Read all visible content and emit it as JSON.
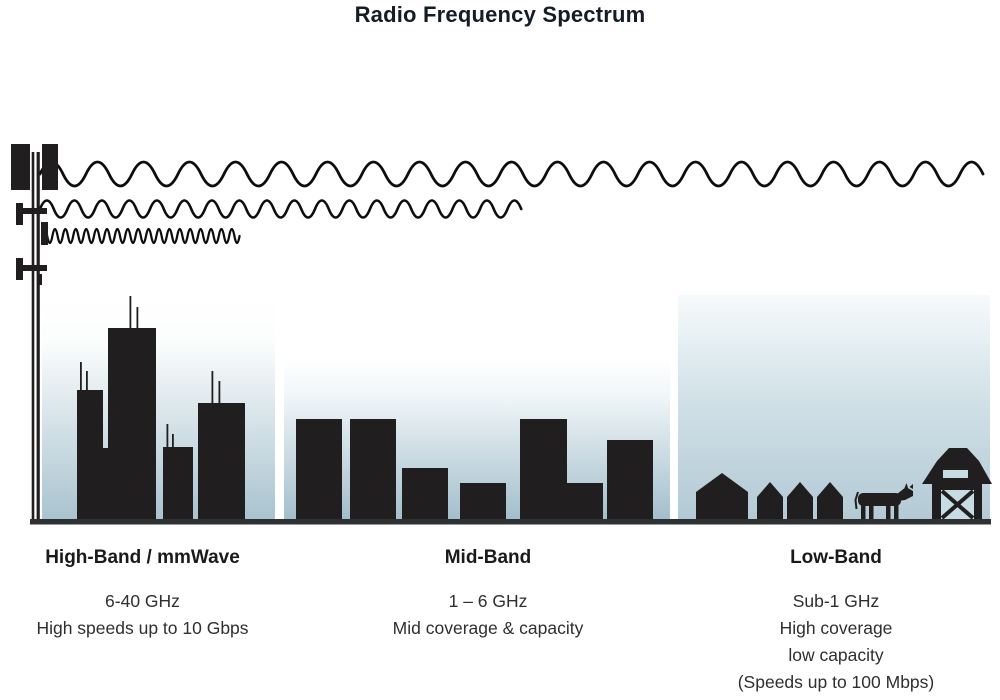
{
  "title": "Radio Frequency Spectrum",
  "bands": [
    {
      "name": "High-Band / mmWave",
      "lines": [
        "6-40 GHz",
        "High speeds up to 10 Gbps"
      ],
      "scene_icon": "city-skyscrapers-icon",
      "wave_icon": "short-wavelength-wave-icon",
      "wave_reach": "shortest"
    },
    {
      "name": "Mid-Band",
      "lines": [
        "1 – 6 GHz",
        "Mid coverage & capacity"
      ],
      "scene_icon": "mid-rise-buildings-icon",
      "wave_icon": "medium-wavelength-wave-icon",
      "wave_reach": "medium"
    },
    {
      "name": "Low-Band",
      "lines": [
        "Sub-1 GHz",
        "High coverage",
        "low capacity",
        "(Speeds up to 100 Mbps)"
      ],
      "scene_icon": "rural-houses-cow-barn-icon",
      "wave_icon": "long-wavelength-wave-icon",
      "wave_reach": "full-width"
    }
  ],
  "illustration": {
    "transmitter_icon": "cell-tower-icon",
    "ground_icon": "ground-line"
  },
  "colors": {
    "silhouette": "#211e1f",
    "wave_color": "#0d0d0d",
    "title_color": "#141c26",
    "heading_color": "#1a1a1a",
    "body_text_color": "#2f2f2f",
    "ground_color": "#2e3133",
    "sky_gradient_top": "#ffffff",
    "sky_gradient_bottom": "#a9c3cf",
    "low_band_sky_bottom": "#b3cad5",
    "barn_door_color": "#c7dbe3"
  }
}
